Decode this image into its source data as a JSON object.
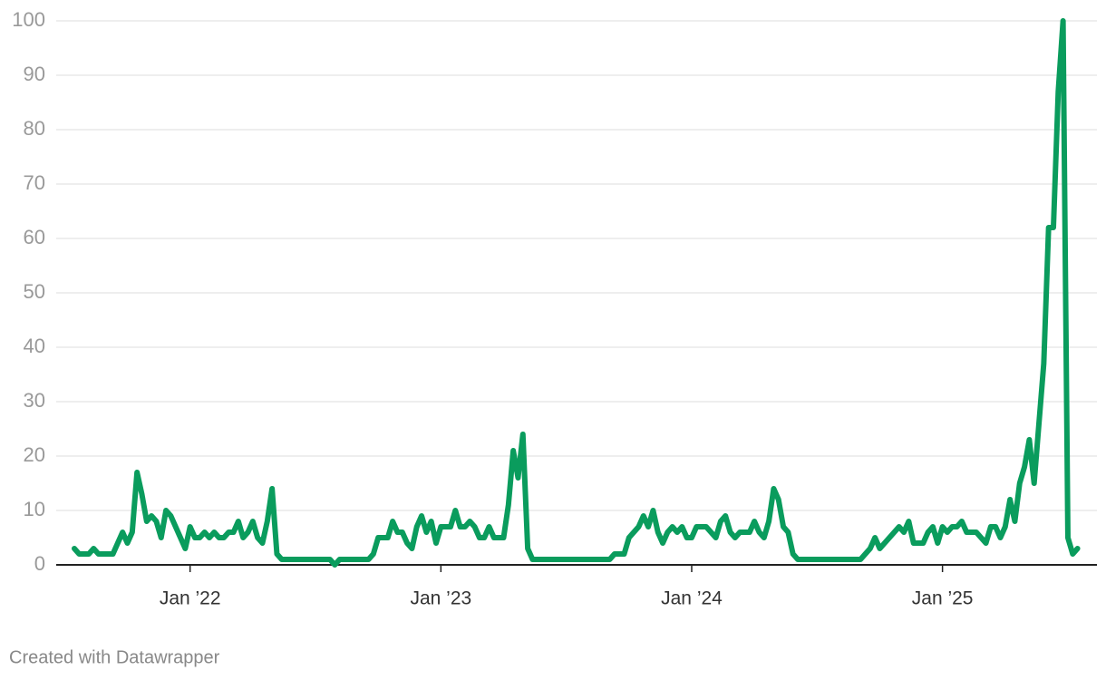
{
  "chart_data": {
    "type": "line",
    "categories": [
      null,
      null,
      null,
      null,
      null,
      null,
      null,
      null,
      null,
      null,
      null,
      null,
      null,
      null,
      null,
      null,
      null,
      null,
      null,
      null,
      null,
      null,
      null,
      null,
      "Jan ’22",
      null,
      null,
      null,
      null,
      null,
      null,
      null,
      null,
      null,
      null,
      null,
      null,
      null,
      null,
      null,
      null,
      null,
      null,
      null,
      null,
      null,
      null,
      null,
      null,
      null,
      null,
      null,
      null,
      null,
      null,
      null,
      null,
      null,
      null,
      null,
      null,
      null,
      null,
      null,
      null,
      null,
      null,
      null,
      null,
      null,
      null,
      null,
      null,
      null,
      null,
      null,
      "Jan ’23",
      null,
      null,
      null,
      null,
      null,
      null,
      null,
      null,
      null,
      null,
      null,
      null,
      null,
      null,
      null,
      null,
      null,
      null,
      null,
      null,
      null,
      null,
      null,
      null,
      null,
      null,
      null,
      null,
      null,
      null,
      null,
      null,
      null,
      null,
      null,
      null,
      null,
      null,
      null,
      null,
      null,
      null,
      null,
      null,
      null,
      null,
      null,
      null,
      null,
      null,
      null,
      "Jan ’24",
      null,
      null,
      null,
      null,
      null,
      null,
      null,
      null,
      null,
      null,
      null,
      null,
      null,
      null,
      null,
      null,
      null,
      null,
      null,
      null,
      null,
      null,
      null,
      null,
      null,
      null,
      null,
      null,
      null,
      null,
      null,
      null,
      null,
      null,
      null,
      null,
      null,
      null,
      null,
      null,
      null,
      null,
      null,
      null,
      null,
      null,
      null,
      null,
      null,
      null,
      null,
      "Jan ’25",
      null,
      null,
      null,
      null,
      null,
      null,
      null,
      null,
      null,
      null,
      null,
      null,
      null,
      null,
      null,
      null,
      null,
      null,
      null,
      null,
      null,
      null,
      null,
      null,
      null,
      null,
      null,
      null
    ],
    "series": [
      {
        "color": "#0a9c5d",
        "values": [
          3,
          2,
          2,
          2,
          3,
          2,
          2,
          2,
          2,
          4,
          6,
          4,
          6,
          17,
          13,
          8,
          9,
          8,
          5,
          10,
          9,
          7,
          5,
          3,
          7,
          5,
          5,
          6,
          5,
          6,
          5,
          5,
          6,
          6,
          8,
          5,
          6,
          8,
          5,
          4,
          8,
          14,
          2,
          1,
          1,
          1,
          1,
          1,
          1,
          1,
          1,
          1,
          1,
          1,
          0,
          1,
          1,
          1,
          1,
          1,
          1,
          1,
          2,
          5,
          5,
          5,
          8,
          6,
          6,
          4,
          3,
          7,
          9,
          6,
          8,
          4,
          7,
          7,
          7,
          10,
          7,
          7,
          8,
          7,
          5,
          5,
          7,
          5,
          5,
          5,
          11,
          21,
          16,
          24,
          3,
          1,
          1,
          1,
          1,
          1,
          1,
          1,
          1,
          1,
          1,
          1,
          1,
          1,
          1,
          1,
          1,
          1,
          2,
          2,
          2,
          5,
          6,
          7,
          9,
          7,
          10,
          6,
          4,
          6,
          7,
          6,
          7,
          5,
          5,
          7,
          7,
          7,
          6,
          5,
          8,
          9,
          6,
          5,
          6,
          6,
          6,
          8,
          6,
          5,
          8,
          14,
          12,
          7,
          6,
          2,
          1,
          1,
          1,
          1,
          1,
          1,
          1,
          1,
          1,
          1,
          1,
          1,
          1,
          1,
          2,
          3,
          5,
          3,
          4,
          5,
          6,
          7,
          6,
          8,
          4,
          4,
          4,
          6,
          7,
          4,
          7,
          6,
          7,
          7,
          8,
          6,
          6,
          6,
          5,
          4,
          7,
          7,
          5,
          7,
          12,
          8,
          15,
          18,
          23,
          15,
          26,
          37,
          62,
          62,
          87,
          100,
          5,
          2,
          3
        ]
      }
    ],
    "ylim": [
      0,
      100
    ],
    "yticks": [
      0,
      10,
      20,
      30,
      40,
      50,
      60,
      70,
      80,
      90,
      100
    ],
    "grid": true,
    "footer": "Created with Datawrapper"
  }
}
